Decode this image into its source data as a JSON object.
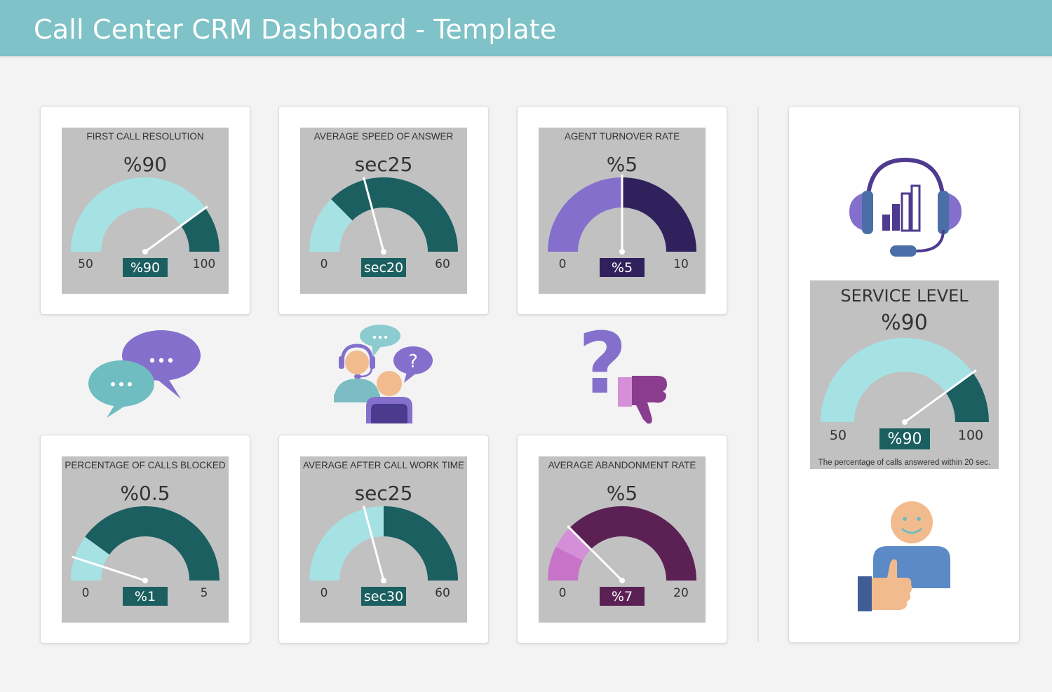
{
  "header": {
    "title": "Call Center CRM Dashboard - Template"
  },
  "gauges": [
    {
      "id": "first-call-resolution",
      "title": "FIRST CALL RESOLUTION",
      "value_label": "%90",
      "badge": "%90",
      "min": 50,
      "max": 100,
      "min_label": "50",
      "max_label": "100",
      "segments": [
        {
          "from": 50,
          "to": 90,
          "color": "#a6e2e4"
        },
        {
          "from": 90,
          "to": 100,
          "color": "#1b5f60"
        }
      ],
      "needle": 90,
      "badge_color": "#1b5f60"
    },
    {
      "id": "average-speed-of-answer",
      "title": "AVERAGE SPEED OF ANSWER",
      "value_label": "sec25",
      "badge": "sec20",
      "min": 0,
      "max": 60,
      "min_label": "0",
      "max_label": "60",
      "segments": [
        {
          "from": 0,
          "to": 15,
          "color": "#a6e2e4"
        },
        {
          "from": 15,
          "to": 60,
          "color": "#1b5f60"
        }
      ],
      "needle": 25,
      "badge_color": "#1b5f60"
    },
    {
      "id": "agent-turnover-rate",
      "title": "AGENT TURNOVER RATE",
      "value_label": "%5",
      "badge": "%5",
      "min": 0,
      "max": 10,
      "min_label": "0",
      "max_label": "10",
      "segments": [
        {
          "from": 0,
          "to": 5,
          "color": "#8470cc"
        },
        {
          "from": 5,
          "to": 10,
          "color": "#30215c"
        }
      ],
      "needle": 5,
      "badge_color": "#30215c"
    },
    {
      "id": "percentage-of-calls-blocked",
      "title": "PERCENTAGE OF CALLS BLOCKED",
      "value_label": "%0.5",
      "badge": "%1",
      "min": 0,
      "max": 5,
      "min_label": "0",
      "max_label": "5",
      "segments": [
        {
          "from": 0,
          "to": 1,
          "color": "#a6e2e4"
        },
        {
          "from": 1,
          "to": 5,
          "color": "#1b5f60"
        }
      ],
      "needle": 0.5,
      "badge_color": "#1b5f60"
    },
    {
      "id": "average-after-call-work-time",
      "title": "AVERAGE AFTER CALL WORK TIME",
      "value_label": "sec25",
      "badge": "sec30",
      "min": 0,
      "max": 60,
      "min_label": "0",
      "max_label": "60",
      "segments": [
        {
          "from": 0,
          "to": 30,
          "color": "#a6e2e4"
        },
        {
          "from": 30,
          "to": 60,
          "color": "#1b5f60"
        }
      ],
      "needle": 25,
      "badge_color": "#1b5f60"
    },
    {
      "id": "average-abandonment-rate",
      "title": "AVERAGE ABANDONMENT RATE",
      "value_label": "%5",
      "badge": "%7",
      "min": 0,
      "max": 20,
      "min_label": "0",
      "max_label": "20",
      "segments": [
        {
          "from": 0,
          "to": 3,
          "color": "#c774c8"
        },
        {
          "from": 3,
          "to": 5,
          "color": "#d58fd8"
        },
        {
          "from": 5,
          "to": 20,
          "color": "#5b2155"
        }
      ],
      "needle": 5,
      "badge_color": "#5b2155"
    }
  ],
  "service_level": {
    "title": "SERVICE LEVEL",
    "value_label": "%90",
    "badge": "%90",
    "min": 50,
    "max": 100,
    "min_label": "50",
    "max_label": "100",
    "segments": [
      {
        "from": 50,
        "to": 90,
        "color": "#a6e2e4"
      },
      {
        "from": 90,
        "to": 100,
        "color": "#1b5f60"
      }
    ],
    "needle": 90,
    "badge_color": "#1b5f60",
    "note": "The percentage of calls answered within 20 sec."
  },
  "icons": {
    "chat": "speech-bubbles-icon",
    "agent": "call-center-agent-icon",
    "question": "question-dislike-icon",
    "headset": "headset-chart-icon",
    "customer": "satisfied-customer-icon"
  },
  "chart_data": [
    {
      "type": "gauge",
      "title": "FIRST CALL RESOLUTION",
      "value": 90,
      "unit": "%",
      "min": 50,
      "max": 100,
      "threshold": 90
    },
    {
      "type": "gauge",
      "title": "AVERAGE SPEED OF ANSWER",
      "value": 25,
      "unit": "sec",
      "min": 0,
      "max": 60,
      "threshold": 15
    },
    {
      "type": "gauge",
      "title": "AGENT TURNOVER RATE",
      "value": 5,
      "unit": "%",
      "min": 0,
      "max": 10,
      "threshold": 5
    },
    {
      "type": "gauge",
      "title": "PERCENTAGE OF CALLS BLOCKED",
      "value": 0.5,
      "unit": "%",
      "min": 0,
      "max": 5,
      "threshold": 1
    },
    {
      "type": "gauge",
      "title": "AVERAGE AFTER CALL WORK TIME",
      "value": 25,
      "unit": "sec",
      "min": 0,
      "max": 60,
      "threshold": 30
    },
    {
      "type": "gauge",
      "title": "AVERAGE ABANDONMENT RATE",
      "value": 5,
      "unit": "%",
      "min": 0,
      "max": 20,
      "threshold": 5
    },
    {
      "type": "gauge",
      "title": "SERVICE LEVEL",
      "value": 90,
      "unit": "%",
      "min": 50,
      "max": 100,
      "threshold": 90
    }
  ]
}
